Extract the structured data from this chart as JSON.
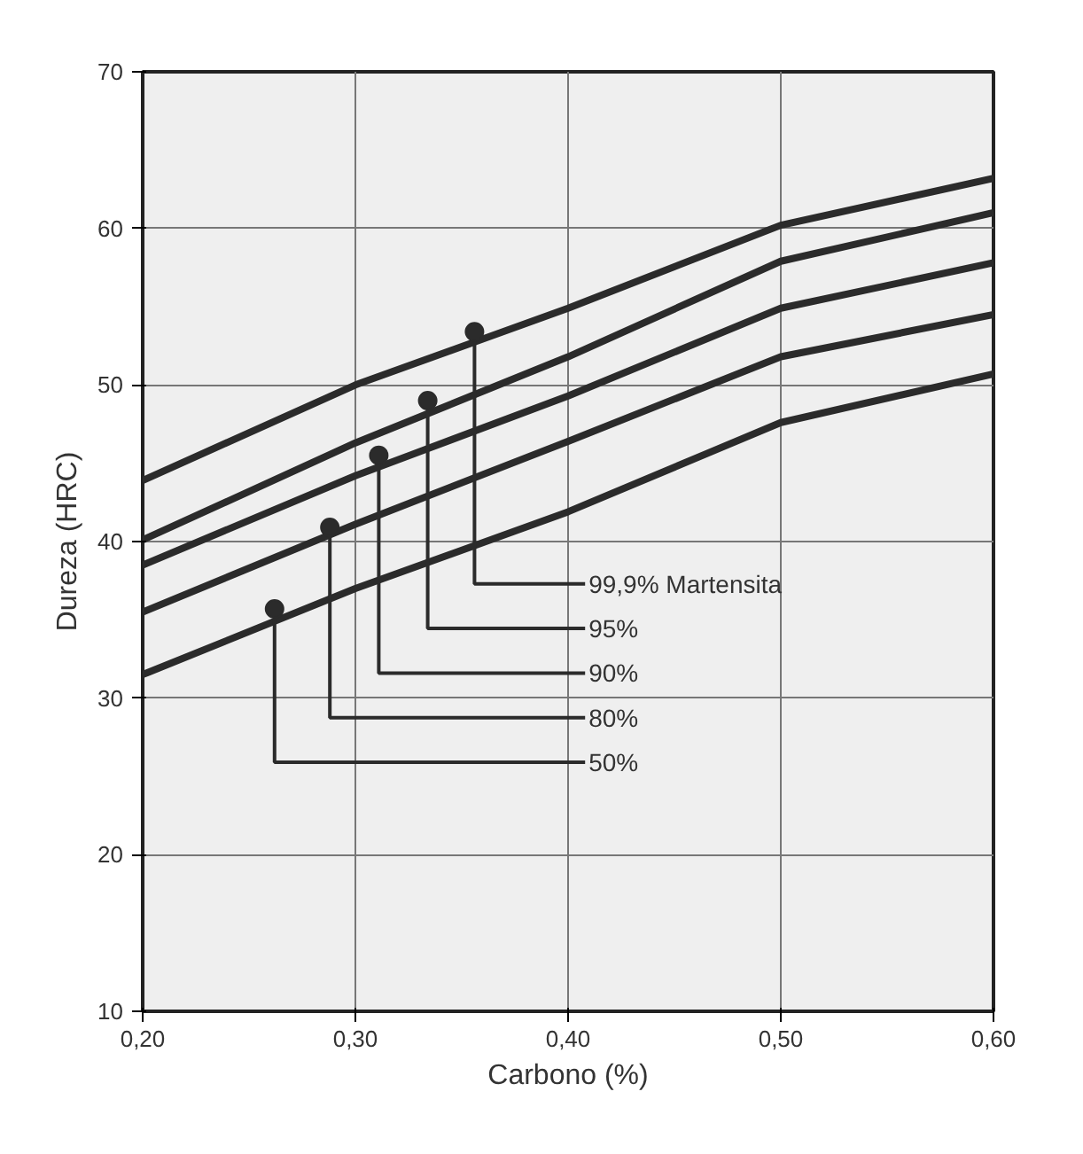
{
  "chart_data": {
    "type": "line",
    "xlabel": "Carbono (%)",
    "ylabel": "Dureza (HRC)",
    "xlim": [
      0.2,
      0.6
    ],
    "ylim": [
      10,
      70
    ],
    "xticks": [
      {
        "value": 0.2,
        "label": "0,20"
      },
      {
        "value": 0.3,
        "label": "0,30"
      },
      {
        "value": 0.4,
        "label": "0,40"
      },
      {
        "value": 0.5,
        "label": "0,50"
      },
      {
        "value": 0.6,
        "label": "0,60"
      }
    ],
    "yticks": [
      10,
      20,
      30,
      40,
      50,
      60,
      70
    ],
    "grid": true,
    "line_style": "solid",
    "marker": "none",
    "x": [
      0.2,
      0.3,
      0.4,
      0.5,
      0.6
    ],
    "series": [
      {
        "color": "#2b2b2b",
        "values": [
          43.9,
          50.0,
          54.9,
          60.2,
          63.2
        ]
      },
      {
        "color": "#2b2b2b",
        "values": [
          40.1,
          46.3,
          51.8,
          57.9,
          61.0
        ]
      },
      {
        "color": "#2b2b2b",
        "values": [
          38.5,
          44.2,
          49.3,
          54.9,
          57.8
        ]
      },
      {
        "color": "#2b2b2b",
        "values": [
          35.5,
          41.1,
          46.4,
          51.8,
          54.5
        ]
      },
      {
        "color": "#2b2b2b",
        "values": [
          31.5,
          37.0,
          41.9,
          47.6,
          50.7
        ]
      }
    ],
    "annotations": [
      {
        "text": "99,9% Martensita",
        "x": 0.356,
        "y": 53.4
      },
      {
        "text": "95%",
        "x": 0.334,
        "y": 49.0
      },
      {
        "text": "90%",
        "x": 0.311,
        "y": 45.5
      },
      {
        "text": "80%",
        "x": 0.288,
        "y": 40.9
      },
      {
        "text": "50%",
        "x": 0.262,
        "y": 35.7
      }
    ]
  }
}
